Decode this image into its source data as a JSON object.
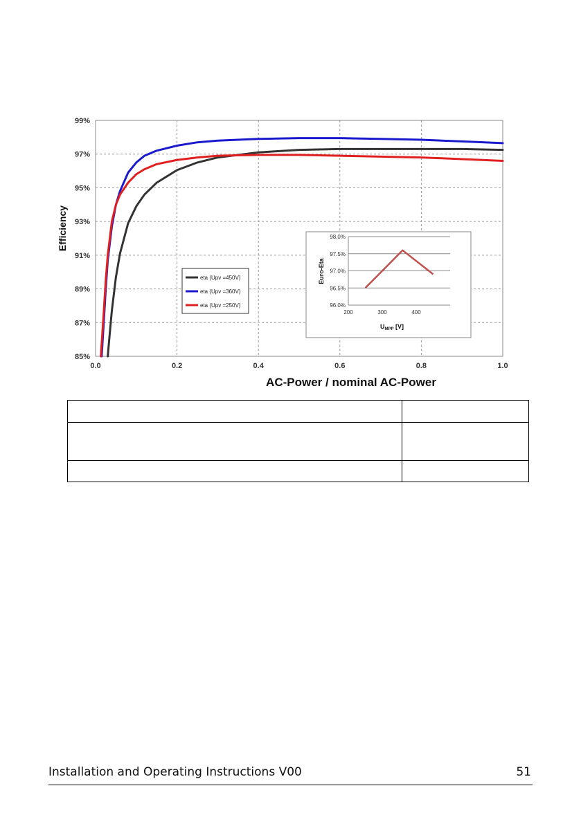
{
  "chart_data": {
    "type": "line",
    "xlabel": "AC-Power / nominal AC-Power",
    "ylabel": "Efficiency",
    "xlim": [
      0.0,
      1.0
    ],
    "ylim": [
      85,
      99
    ],
    "x_ticks": [
      "0.0",
      "0.2",
      "0.4",
      "0.6",
      "0.8",
      "1.0"
    ],
    "y_ticks": [
      "85%",
      "87%",
      "89%",
      "91%",
      "93%",
      "95%",
      "97%",
      "99%"
    ],
    "grid": true,
    "legend": "center-left",
    "series": [
      {
        "name": "eta (Upv =450V)",
        "color": "#333333",
        "x": [
          0.03,
          0.035,
          0.04,
          0.05,
          0.06,
          0.08,
          0.1,
          0.12,
          0.15,
          0.2,
          0.25,
          0.3,
          0.4,
          0.5,
          0.6,
          0.7,
          0.8,
          0.9,
          1.0
        ],
        "y": [
          85.0,
          86.4,
          87.7,
          89.7,
          91.1,
          92.9,
          93.9,
          94.6,
          95.3,
          96.05,
          96.5,
          96.8,
          97.1,
          97.25,
          97.3,
          97.3,
          97.3,
          97.3,
          97.25
        ]
      },
      {
        "name": "eta (Upv =360V)",
        "color": "#1a1acc",
        "x": [
          0.015,
          0.02,
          0.025,
          0.03,
          0.04,
          0.05,
          0.06,
          0.08,
          0.1,
          0.12,
          0.15,
          0.2,
          0.25,
          0.3,
          0.4,
          0.5,
          0.6,
          0.7,
          0.8,
          0.9,
          1.0
        ],
        "y": [
          85.0,
          87.0,
          89.0,
          90.7,
          92.7,
          94.0,
          94.8,
          95.9,
          96.5,
          96.9,
          97.2,
          97.5,
          97.7,
          97.8,
          97.9,
          97.95,
          97.95,
          97.9,
          97.85,
          97.75,
          97.65
        ]
      },
      {
        "name": "eta (Upv =250V)",
        "color": "#e02020",
        "x": [
          0.013,
          0.02,
          0.025,
          0.03,
          0.04,
          0.05,
          0.06,
          0.08,
          0.1,
          0.12,
          0.15,
          0.2,
          0.25,
          0.3,
          0.4,
          0.5,
          0.6,
          0.7,
          0.8,
          0.9,
          1.0
        ],
        "y": [
          85.0,
          87.6,
          89.5,
          91.0,
          93.0,
          94.0,
          94.6,
          95.3,
          95.8,
          96.1,
          96.4,
          96.65,
          96.8,
          96.9,
          96.95,
          96.95,
          96.9,
          96.85,
          96.8,
          96.7,
          96.6
        ]
      }
    ],
    "inset": {
      "type": "line",
      "xlabel": "U",
      "xlabel_sub": "MPP",
      "xlabel_unit": " [V]",
      "ylabel": "Euro-Eta",
      "xlim": [
        200,
        500
      ],
      "ylim": [
        96.0,
        98.0
      ],
      "x_ticks": [
        "200",
        "300",
        "400"
      ],
      "y_ticks": [
        "96.0%",
        "96.5%",
        "97.0%",
        "97.5%",
        "98.0%"
      ],
      "series": [
        {
          "color": "#c0504d",
          "x": [
            250,
            360,
            450
          ],
          "y": [
            96.5,
            97.6,
            96.9
          ]
        }
      ]
    }
  },
  "table": {
    "rows": [
      [
        "",
        ""
      ],
      [
        "",
        ""
      ],
      [
        "",
        ""
      ]
    ]
  },
  "footer": {
    "title": "Installation and Operating Instructions V00",
    "page": "51"
  }
}
